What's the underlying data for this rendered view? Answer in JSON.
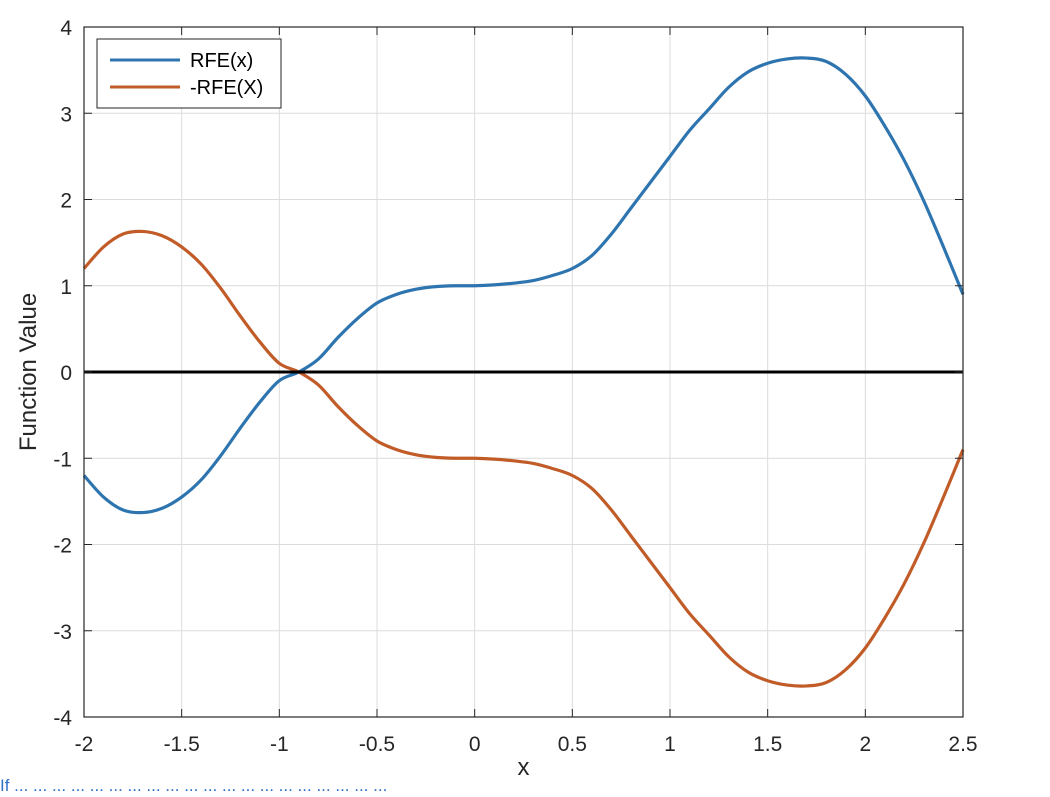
{
  "chart_data": {
    "type": "line",
    "title": "",
    "xlabel": "x",
    "ylabel": "Function Value",
    "xlim": [
      -2,
      2.5
    ],
    "ylim": [
      -4,
      4
    ],
    "xticks": [
      -2,
      -1.5,
      -1,
      -0.5,
      0,
      0.5,
      1,
      1.5,
      2,
      2.5
    ],
    "yticks": [
      -4,
      -3,
      -2,
      -1,
      0,
      1,
      2,
      3,
      4
    ],
    "x_tick_labels": [
      "-2",
      "-1.5",
      "-1",
      "-0.5",
      "0",
      "0.5",
      "1",
      "1.5",
      "2",
      "2.5"
    ],
    "y_tick_labels": [
      "-4",
      "-3",
      "-2",
      "-1",
      "0",
      "1",
      "2",
      "3",
      "4"
    ],
    "grid": true,
    "legend_position": "top-left",
    "reference_line": {
      "y": 0,
      "color": "#000000"
    },
    "series": [
      {
        "name": "RFE(x)",
        "color": "#2e75b0",
        "x": [
          -2,
          -1.9,
          -1.8,
          -1.7,
          -1.6,
          -1.5,
          -1.4,
          -1.3,
          -1.2,
          -1.1,
          -1.0,
          -0.9,
          -0.8,
          -0.7,
          -0.6,
          -0.5,
          -0.4,
          -0.3,
          -0.2,
          -0.1,
          0,
          0.1,
          0.2,
          0.3,
          0.4,
          0.5,
          0.6,
          0.7,
          0.8,
          0.9,
          1.0,
          1.1,
          1.2,
          1.3,
          1.4,
          1.5,
          1.6,
          1.7,
          1.8,
          1.9,
          2.0,
          2.1,
          2.2,
          2.3,
          2.4,
          2.5
        ],
        "y": [
          -1.2,
          -1.45,
          -1.6,
          -1.63,
          -1.58,
          -1.45,
          -1.25,
          -0.97,
          -0.65,
          -0.35,
          -0.1,
          0.0,
          0.15,
          0.4,
          0.62,
          0.8,
          0.9,
          0.96,
          0.99,
          1.0,
          1.0,
          1.01,
          1.03,
          1.06,
          1.12,
          1.2,
          1.35,
          1.6,
          1.9,
          2.2,
          2.5,
          2.8,
          3.05,
          3.3,
          3.48,
          3.58,
          3.63,
          3.64,
          3.6,
          3.45,
          3.2,
          2.85,
          2.45,
          1.98,
          1.45,
          0.9
        ]
      },
      {
        "name": "-RFE(X)",
        "color": "#c15c28",
        "x": [
          -2,
          -1.9,
          -1.8,
          -1.7,
          -1.6,
          -1.5,
          -1.4,
          -1.3,
          -1.2,
          -1.1,
          -1.0,
          -0.9,
          -0.8,
          -0.7,
          -0.6,
          -0.5,
          -0.4,
          -0.3,
          -0.2,
          -0.1,
          0,
          0.1,
          0.2,
          0.3,
          0.4,
          0.5,
          0.6,
          0.7,
          0.8,
          0.9,
          1.0,
          1.1,
          1.2,
          1.3,
          1.4,
          1.5,
          1.6,
          1.7,
          1.8,
          1.9,
          2.0,
          2.1,
          2.2,
          2.3,
          2.4,
          2.5
        ],
        "y": [
          1.2,
          1.45,
          1.6,
          1.63,
          1.58,
          1.45,
          1.25,
          0.97,
          0.65,
          0.35,
          0.1,
          0.0,
          -0.15,
          -0.4,
          -0.62,
          -0.8,
          -0.9,
          -0.96,
          -0.99,
          -1.0,
          -1.0,
          -1.01,
          -1.03,
          -1.06,
          -1.12,
          -1.2,
          -1.35,
          -1.6,
          -1.9,
          -2.2,
          -2.5,
          -2.8,
          -3.05,
          -3.3,
          -3.48,
          -3.58,
          -3.63,
          -3.64,
          -3.6,
          -3.45,
          -3.2,
          -2.85,
          -2.45,
          -1.98,
          -1.45,
          -0.9
        ]
      }
    ]
  },
  "caption_text": "If ... ... ... ... ... ... ... ... ... ... ... ... ... ... ... ... ... ... ... ..."
}
